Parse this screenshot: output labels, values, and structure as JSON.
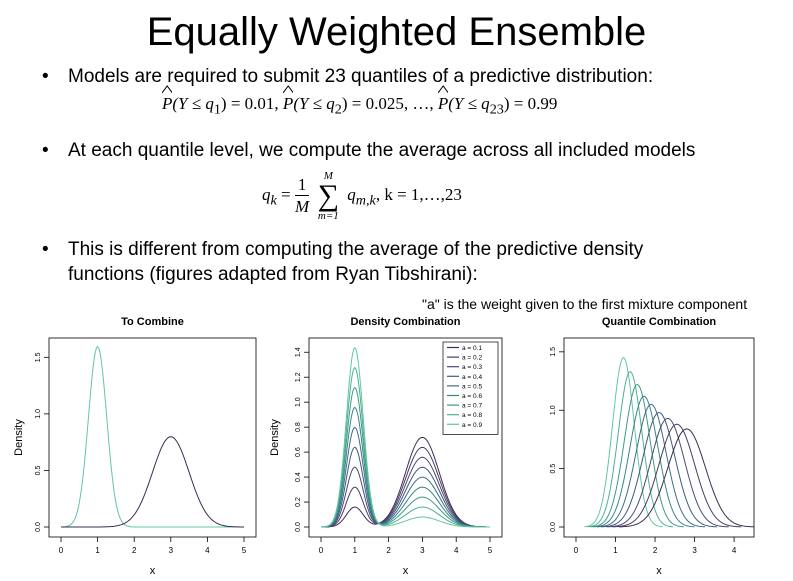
{
  "slide": {
    "title": "Equally Weighted Ensemble",
    "bullets": [
      "Models are required to submit 23 quantiles of a predictive distribution:",
      "At each quantile level, we compute the average across all included models",
      "This is different from computing the average of the predictive density",
      "functions (figures adapted from Ryan Tibshirani):"
    ],
    "bullet_char": "•",
    "eq1": {
      "P": "P",
      "a1": "(Y ≤ q",
      "s1": "1",
      "b1": ") = 0.01,",
      "a2": "(Y ≤ q",
      "s2": "2",
      "b2": ") = 0.025,  …,",
      "a3": "(Y ≤ q",
      "s3": "23",
      "b3": ") = 0.99"
    },
    "eq2": {
      "lhs": "q",
      "lhs_sub": "k",
      "eq": " = ",
      "num": "1",
      "den": "M",
      "sum_top": "M",
      "sum_sym": "∑",
      "sum_bot": "m=1",
      "term": "q",
      "term_sub": "m,k",
      "rest": ",  k = 1,…,23"
    },
    "note": "\"a\" is the weight given to the first mixture component"
  },
  "chart_data": [
    {
      "type": "line",
      "title": "To Combine",
      "xlabel": "x",
      "ylabel": "Density",
      "xlim": [
        0,
        5
      ],
      "ylim": [
        0,
        1.6
      ],
      "xticks": [
        0,
        1,
        2,
        3,
        4,
        5
      ],
      "yticks": [
        0.0,
        0.5,
        1.0,
        1.5
      ],
      "series": [
        {
          "distribution": "normal",
          "mean": 1,
          "sd": 0.25,
          "color": "#5fc89c"
        },
        {
          "distribution": "normal",
          "mean": 3,
          "sd": 0.5,
          "color": "#3d2d50"
        }
      ]
    },
    {
      "type": "line",
      "title": "Density Combination",
      "xlabel": "x",
      "ylabel": "Density",
      "xlim": [
        0,
        5
      ],
      "ylim": [
        0,
        1.45
      ],
      "xticks": [
        0,
        1,
        2,
        3,
        4,
        5
      ],
      "yticks": [
        0.0,
        0.2,
        0.4,
        0.6,
        0.8,
        1.0,
        1.2,
        1.4
      ],
      "legend": {
        "placement": "top-right",
        "entries": [
          "a = 0.1",
          "a = 0.2",
          "a = 0.3",
          "a = 0.4",
          "a = 0.5",
          "a = 0.6",
          "a = 0.7",
          "a = 0.8",
          "a = 0.9"
        ]
      },
      "mixture": {
        "m1": 1,
        "s1": 0.25,
        "m2": 3,
        "s2": 0.5
      },
      "weights": [
        0.1,
        0.2,
        0.3,
        0.4,
        0.5,
        0.6,
        0.7,
        0.8,
        0.9
      ],
      "colors": [
        "#3d2d50",
        "#4a3a62",
        "#4c4a74",
        "#3c5a7e",
        "#3b6e86",
        "#3a8488",
        "#3e9a8a",
        "#4cb192",
        "#5fc89c"
      ]
    },
    {
      "type": "line",
      "title": "Quantile Combination",
      "xlabel": "x",
      "ylabel": "",
      "xlim": [
        0,
        4.2
      ],
      "ylim": [
        0,
        1.55
      ],
      "xticks": [
        0,
        1,
        2,
        3,
        4
      ],
      "yticks": [
        0.0,
        0.5,
        1.0,
        1.5
      ],
      "weights": [
        0.1,
        0.2,
        0.3,
        0.4,
        0.5,
        0.6,
        0.7,
        0.8,
        0.9
      ],
      "peaks_x": [
        1.2,
        1.37,
        1.55,
        1.72,
        1.9,
        2.1,
        2.32,
        2.55,
        2.8
      ],
      "peaks_y": [
        1.45,
        1.33,
        1.22,
        1.12,
        1.05,
        0.98,
        0.93,
        0.88,
        0.84
      ],
      "colors": [
        "#5fc89c",
        "#4cb192",
        "#3e9a8a",
        "#3a8488",
        "#3b6e86",
        "#3c5a7e",
        "#4c4a74",
        "#4a3a62",
        "#3d2d50"
      ]
    }
  ]
}
